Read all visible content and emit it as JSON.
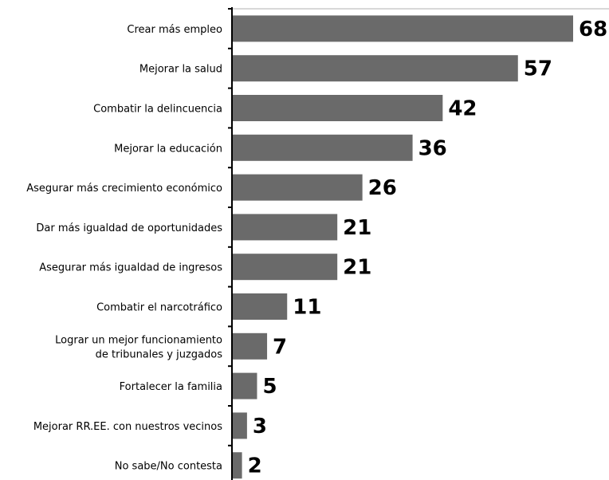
{
  "chart_data": {
    "type": "bar",
    "orientation": "horizontal",
    "categories": [
      "Crear más empleo",
      "Mejorar la salud",
      "Combatir la delincuencia",
      "Mejorar la educación",
      "Asegurar más crecimiento económico",
      "Dar más igualdad de oportunidades",
      "Asegurar más igualdad de ingresos",
      "Combatir el narcotráfico",
      "Lograr un mejor funcionamiento\nde tribunales y juzgados",
      "Fortalecer la familia",
      "Mejorar RR.EE. con nuestros vecinos",
      "No sabe/No contesta"
    ],
    "values": [
      68,
      57,
      42,
      36,
      26,
      21,
      21,
      11,
      7,
      5,
      3,
      2
    ],
    "xlim": [
      0,
      72
    ],
    "grid": false,
    "bar_color": "#6a6a6a",
    "axis_color": "#000000"
  }
}
